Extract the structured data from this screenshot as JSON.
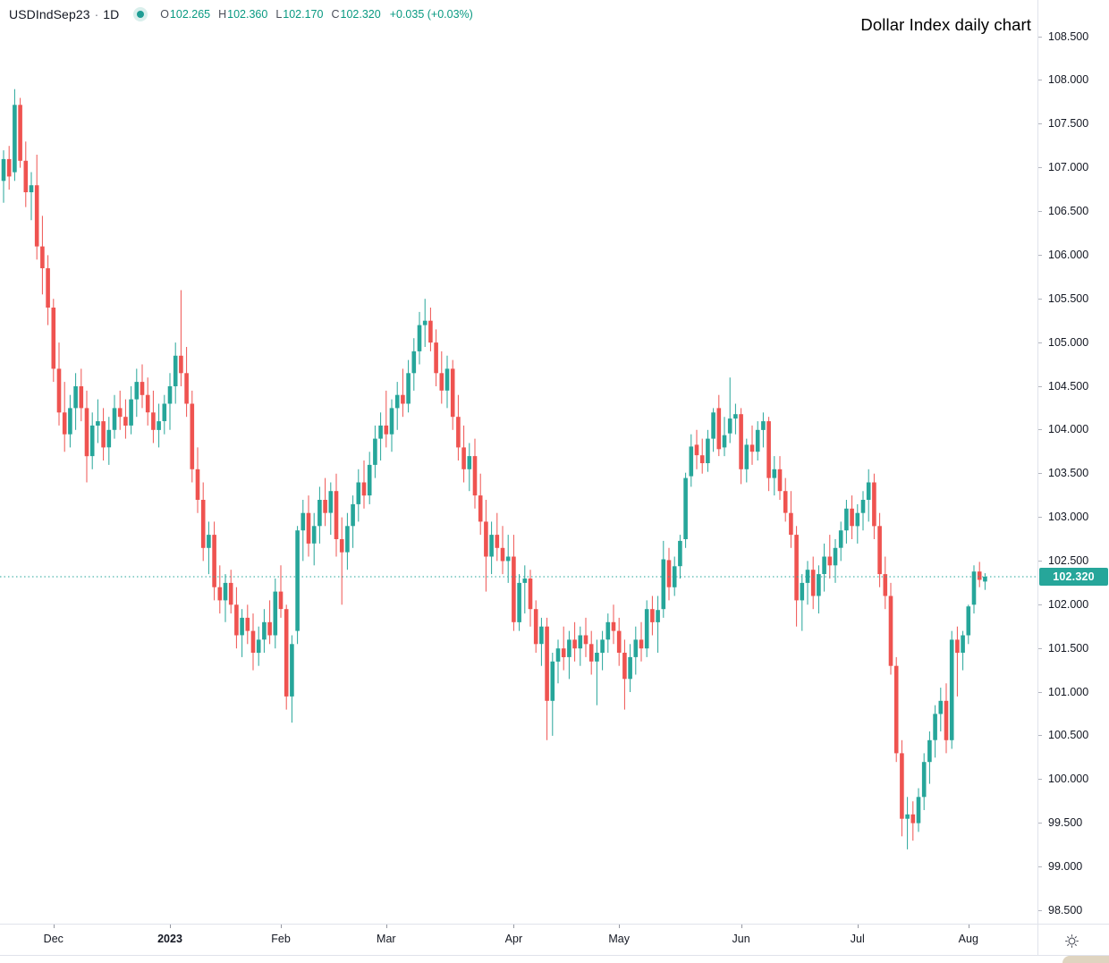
{
  "legend": {
    "symbol": "USDIndSep23",
    "separator": "·",
    "interval": "1D",
    "ohlc": {
      "o_label": "O",
      "o": "102.265",
      "h_label": "H",
      "h": "102.360",
      "l_label": "L",
      "l": "102.170",
      "c_label": "C",
      "c": "102.320",
      "change": "+0.035 (+0.03%)"
    }
  },
  "colors": {
    "up": "#26a69a",
    "down": "#ef5350",
    "price_line": "#26a69a",
    "badge_bg": "#26a69a",
    "badge_text": "#ffffff",
    "axis_text": "#131722",
    "border": "#e0e3eb"
  },
  "chart_data": {
    "type": "candlestick",
    "title": "Dollar Index daily chart",
    "symbol": "USDIndSep23",
    "timeframe": "1D",
    "legend_ohlc": {
      "open": 102.265,
      "high": 102.36,
      "low": 102.17,
      "close": 102.32,
      "change": 0.035,
      "change_pct": 0.03
    },
    "ylim": [
      98.35,
      108.92
    ],
    "grid": false,
    "legend_position": "top-left",
    "y_tick_labels": [
      "108.500",
      "108.000",
      "107.500",
      "107.000",
      "106.500",
      "106.000",
      "105.500",
      "105.000",
      "104.500",
      "104.000",
      "103.500",
      "103.000",
      "102.500",
      "102.000",
      "101.500",
      "101.000",
      "100.500",
      "100.000",
      "99.500",
      "99.000",
      "98.500"
    ],
    "x_tick_labels": [
      {
        "text": "Dec",
        "index": 9
      },
      {
        "text": "2023",
        "index": 30,
        "bold": true
      },
      {
        "text": "Feb",
        "index": 50
      },
      {
        "text": "Mar",
        "index": 69
      },
      {
        "text": "Apr",
        "index": 92
      },
      {
        "text": "May",
        "index": 111
      },
      {
        "text": "Jun",
        "index": 133
      },
      {
        "text": "Jul",
        "index": 154
      },
      {
        "text": "Aug",
        "index": 174
      }
    ],
    "last_price": {
      "value": 102.32,
      "label": "102.320",
      "line_style": "dotted"
    },
    "candles": [
      [
        106.85,
        107.2,
        106.6,
        107.1
      ],
      [
        107.1,
        107.25,
        106.75,
        106.9
      ],
      [
        106.95,
        107.9,
        106.85,
        107.72
      ],
      [
        107.72,
        107.8,
        107.0,
        107.08
      ],
      [
        107.08,
        107.3,
        106.55,
        106.72
      ],
      [
        106.72,
        106.95,
        106.4,
        106.8
      ],
      [
        106.8,
        107.15,
        105.95,
        106.1
      ],
      [
        106.1,
        106.45,
        105.55,
        105.85
      ],
      [
        105.85,
        106.0,
        105.2,
        105.4
      ],
      [
        105.4,
        105.5,
        104.55,
        104.7
      ],
      [
        104.7,
        105.0,
        104.05,
        104.2
      ],
      [
        104.2,
        104.55,
        103.75,
        103.95
      ],
      [
        103.95,
        104.4,
        103.8,
        104.25
      ],
      [
        104.25,
        104.65,
        104.0,
        104.5
      ],
      [
        104.5,
        104.7,
        104.1,
        104.25
      ],
      [
        104.25,
        104.45,
        103.4,
        103.7
      ],
      [
        103.7,
        104.2,
        103.55,
        104.05
      ],
      [
        104.05,
        104.35,
        103.85,
        104.1
      ],
      [
        104.1,
        104.25,
        103.65,
        103.8
      ],
      [
        103.8,
        104.15,
        103.6,
        104.0
      ],
      [
        104.0,
        104.4,
        103.9,
        104.25
      ],
      [
        104.25,
        104.45,
        104.0,
        104.15
      ],
      [
        104.15,
        104.35,
        103.9,
        104.05
      ],
      [
        104.05,
        104.5,
        103.95,
        104.35
      ],
      [
        104.35,
        104.7,
        104.15,
        104.55
      ],
      [
        104.55,
        104.75,
        104.25,
        104.4
      ],
      [
        104.4,
        104.6,
        104.05,
        104.2
      ],
      [
        104.2,
        104.45,
        103.85,
        104.0
      ],
      [
        104.0,
        104.3,
        103.8,
        104.1
      ],
      [
        104.1,
        104.4,
        103.95,
        104.3
      ],
      [
        104.3,
        104.65,
        104.0,
        104.5
      ],
      [
        104.5,
        105.0,
        104.3,
        104.85
      ],
      [
        104.85,
        105.6,
        104.5,
        104.65
      ],
      [
        104.65,
        104.95,
        104.15,
        104.3
      ],
      [
        104.3,
        104.45,
        103.4,
        103.55
      ],
      [
        103.55,
        103.8,
        103.05,
        103.2
      ],
      [
        103.2,
        103.4,
        102.5,
        102.65
      ],
      [
        102.65,
        102.95,
        102.35,
        102.8
      ],
      [
        102.8,
        102.95,
        102.05,
        102.2
      ],
      [
        102.2,
        102.45,
        101.9,
        102.05
      ],
      [
        102.05,
        102.35,
        101.8,
        102.25
      ],
      [
        102.25,
        102.4,
        101.9,
        102.0
      ],
      [
        102.0,
        102.2,
        101.5,
        101.65
      ],
      [
        101.65,
        101.95,
        101.4,
        101.85
      ],
      [
        101.85,
        102.0,
        101.55,
        101.7
      ],
      [
        101.7,
        101.9,
        101.25,
        101.45
      ],
      [
        101.45,
        101.75,
        101.3,
        101.6
      ],
      [
        101.6,
        101.95,
        101.45,
        101.8
      ],
      [
        101.8,
        102.05,
        101.55,
        101.65
      ],
      [
        101.65,
        102.3,
        101.5,
        102.15
      ],
      [
        102.15,
        102.45,
        101.85,
        101.95
      ],
      [
        101.95,
        102.0,
        100.8,
        100.95
      ],
      [
        100.95,
        101.65,
        100.65,
        101.55
      ],
      [
        101.7,
        102.9,
        101.55,
        102.85
      ],
      [
        102.85,
        103.2,
        102.5,
        103.05
      ],
      [
        103.05,
        103.25,
        102.55,
        102.7
      ],
      [
        102.7,
        103.05,
        102.45,
        102.9
      ],
      [
        102.9,
        103.35,
        102.7,
        103.2
      ],
      [
        103.2,
        103.45,
        102.9,
        103.05
      ],
      [
        103.05,
        103.4,
        102.8,
        103.3
      ],
      [
        103.3,
        103.5,
        102.55,
        102.75
      ],
      [
        102.75,
        103.0,
        102.0,
        102.6
      ],
      [
        102.6,
        103.05,
        102.4,
        102.9
      ],
      [
        102.9,
        103.25,
        102.65,
        103.15
      ],
      [
        103.15,
        103.55,
        102.95,
        103.4
      ],
      [
        103.4,
        103.65,
        103.1,
        103.25
      ],
      [
        103.25,
        103.75,
        103.15,
        103.6
      ],
      [
        103.6,
        104.05,
        103.45,
        103.9
      ],
      [
        103.9,
        104.2,
        103.65,
        104.05
      ],
      [
        104.05,
        104.45,
        103.8,
        103.95
      ],
      [
        103.95,
        104.35,
        103.75,
        104.25
      ],
      [
        104.25,
        104.55,
        104.0,
        104.4
      ],
      [
        104.4,
        104.7,
        104.15,
        104.3
      ],
      [
        104.3,
        104.8,
        104.2,
        104.65
      ],
      [
        104.65,
        105.05,
        104.45,
        104.9
      ],
      [
        104.9,
        105.35,
        104.75,
        105.2
      ],
      [
        105.2,
        105.5,
        104.95,
        105.25
      ],
      [
        105.25,
        105.4,
        104.9,
        105.0
      ],
      [
        105.0,
        105.15,
        104.5,
        104.65
      ],
      [
        104.65,
        104.9,
        104.3,
        104.45
      ],
      [
        104.45,
        104.85,
        104.25,
        104.7
      ],
      [
        104.7,
        104.8,
        104.0,
        104.15
      ],
      [
        104.15,
        104.4,
        103.65,
        103.8
      ],
      [
        103.8,
        104.05,
        103.4,
        103.55
      ],
      [
        103.55,
        103.85,
        103.3,
        103.7
      ],
      [
        103.7,
        103.9,
        103.1,
        103.25
      ],
      [
        103.25,
        103.5,
        102.8,
        102.95
      ],
      [
        102.95,
        103.2,
        102.15,
        102.55
      ],
      [
        102.55,
        102.95,
        102.35,
        102.8
      ],
      [
        102.8,
        103.05,
        102.5,
        102.65
      ],
      [
        102.65,
        102.9,
        102.35,
        102.5
      ],
      [
        102.5,
        102.8,
        102.25,
        102.55
      ],
      [
        102.55,
        102.8,
        101.7,
        101.8
      ],
      [
        101.8,
        102.35,
        101.7,
        102.25
      ],
      [
        102.25,
        102.45,
        101.9,
        102.3
      ],
      [
        102.3,
        102.4,
        101.75,
        101.95
      ],
      [
        101.95,
        102.05,
        101.45,
        101.55
      ],
      [
        101.55,
        101.85,
        101.3,
        101.75
      ],
      [
        101.75,
        101.85,
        100.45,
        100.9
      ],
      [
        100.9,
        101.45,
        100.5,
        101.35
      ],
      [
        101.35,
        101.6,
        101.1,
        101.5
      ],
      [
        101.5,
        101.75,
        101.25,
        101.4
      ],
      [
        101.4,
        101.7,
        101.15,
        101.6
      ],
      [
        101.6,
        101.8,
        101.35,
        101.5
      ],
      [
        101.5,
        101.75,
        101.3,
        101.65
      ],
      [
        101.65,
        101.85,
        101.4,
        101.55
      ],
      [
        101.55,
        101.7,
        101.2,
        101.35
      ],
      [
        101.35,
        101.6,
        100.85,
        101.45
      ],
      [
        101.45,
        101.7,
        101.25,
        101.6
      ],
      [
        101.6,
        101.9,
        101.45,
        101.8
      ],
      [
        101.8,
        102.0,
        101.55,
        101.7
      ],
      [
        101.7,
        101.85,
        101.3,
        101.45
      ],
      [
        101.45,
        101.6,
        100.8,
        101.15
      ],
      [
        101.15,
        101.55,
        101.0,
        101.4
      ],
      [
        101.4,
        101.75,
        101.2,
        101.6
      ],
      [
        101.6,
        101.8,
        101.35,
        101.5
      ],
      [
        101.5,
        102.05,
        101.4,
        101.95
      ],
      [
        101.95,
        102.1,
        101.65,
        101.8
      ],
      [
        101.8,
        102.1,
        101.45,
        101.94
      ],
      [
        101.95,
        102.73,
        101.85,
        102.52
      ],
      [
        102.51,
        102.65,
        102.05,
        102.2
      ],
      [
        102.2,
        102.55,
        102.1,
        102.44
      ],
      [
        102.44,
        102.8,
        102.3,
        102.73
      ],
      [
        102.75,
        103.51,
        102.65,
        103.45
      ],
      [
        103.47,
        103.95,
        103.35,
        103.81
      ],
      [
        103.83,
        104.0,
        103.55,
        103.71
      ],
      [
        103.71,
        103.9,
        103.5,
        103.62
      ],
      [
        103.62,
        104.0,
        103.52,
        103.9
      ],
      [
        103.9,
        104.25,
        103.75,
        104.2
      ],
      [
        104.25,
        104.4,
        103.7,
        103.78
      ],
      [
        103.8,
        104.15,
        103.7,
        103.94
      ],
      [
        103.96,
        104.6,
        103.85,
        104.13
      ],
      [
        104.13,
        104.3,
        103.95,
        104.18
      ],
      [
        104.18,
        104.25,
        103.38,
        103.55
      ],
      [
        103.55,
        103.9,
        103.4,
        103.83
      ],
      [
        103.83,
        104.05,
        103.6,
        103.75
      ],
      [
        103.75,
        104.1,
        103.65,
        104.0
      ],
      [
        104.0,
        104.2,
        103.8,
        104.1
      ],
      [
        104.1,
        104.15,
        103.3,
        103.45
      ],
      [
        103.45,
        103.7,
        103.25,
        103.55
      ],
      [
        103.55,
        103.7,
        103.2,
        103.3
      ],
      [
        103.3,
        103.45,
        102.95,
        103.05
      ],
      [
        103.05,
        103.3,
        102.65,
        102.8
      ],
      [
        102.8,
        102.9,
        101.75,
        102.05
      ],
      [
        102.05,
        102.35,
        101.7,
        102.25
      ],
      [
        102.25,
        102.5,
        102.0,
        102.4
      ],
      [
        102.4,
        102.55,
        101.95,
        102.1
      ],
      [
        102.1,
        102.45,
        101.9,
        102.35
      ],
      [
        102.35,
        102.7,
        102.15,
        102.55
      ],
      [
        102.55,
        102.8,
        102.3,
        102.45
      ],
      [
        102.45,
        102.75,
        102.25,
        102.65
      ],
      [
        102.65,
        102.95,
        102.5,
        102.85
      ],
      [
        102.85,
        103.2,
        102.7,
        103.1
      ],
      [
        103.1,
        103.25,
        102.75,
        102.9
      ],
      [
        102.9,
        103.15,
        102.7,
        103.05
      ],
      [
        103.05,
        103.3,
        102.85,
        103.2
      ],
      [
        103.2,
        103.55,
        102.95,
        103.4
      ],
      [
        103.4,
        103.5,
        102.75,
        102.9
      ],
      [
        102.9,
        103.05,
        102.2,
        102.35
      ],
      [
        102.35,
        102.55,
        101.95,
        102.1
      ],
      [
        102.1,
        102.25,
        101.2,
        101.3
      ],
      [
        101.3,
        101.4,
        100.2,
        100.3
      ],
      [
        100.3,
        100.45,
        99.35,
        99.55
      ],
      [
        99.55,
        99.8,
        99.2,
        99.6
      ],
      [
        99.6,
        99.75,
        99.3,
        99.5
      ],
      [
        99.5,
        99.9,
        99.4,
        99.8
      ],
      [
        99.8,
        100.3,
        99.65,
        100.2
      ],
      [
        100.2,
        100.55,
        99.95,
        100.45
      ],
      [
        100.45,
        100.85,
        100.25,
        100.75
      ],
      [
        100.75,
        101.05,
        100.55,
        100.9
      ],
      [
        100.9,
        101.1,
        100.3,
        100.45
      ],
      [
        100.45,
        101.7,
        100.35,
        101.6
      ],
      [
        101.6,
        101.75,
        100.95,
        101.45
      ],
      [
        101.45,
        101.7,
        101.25,
        101.65
      ],
      [
        101.65,
        102.0,
        101.55,
        101.98
      ],
      [
        102.0,
        102.45,
        101.9,
        102.38
      ],
      [
        102.38,
        102.49,
        102.2,
        102.285
      ],
      [
        102.265,
        102.36,
        102.17,
        102.32
      ]
    ]
  }
}
